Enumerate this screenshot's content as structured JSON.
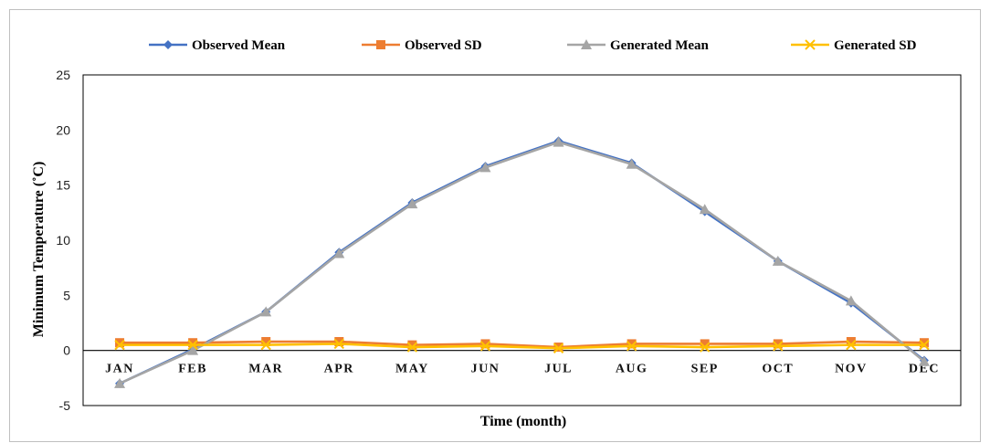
{
  "chart_data": {
    "type": "line",
    "title": "",
    "xlabel": "Time (month)",
    "ylabel": "Minimum Temperature (˚C)",
    "ylim": [
      -5,
      25
    ],
    "yticks": [
      -5,
      0,
      5,
      10,
      15,
      20,
      25
    ],
    "grid": false,
    "legend": "top",
    "categories": [
      "JAN",
      "FEB",
      "MAR",
      "APR",
      "MAY",
      "JUN",
      "JUL",
      "AUG",
      "SEP",
      "OCT",
      "NOV",
      "DEC"
    ],
    "series": [
      {
        "name": "Observed Mean",
        "color": "#4472c4",
        "marker": "diamond",
        "values": [
          -3.0,
          0.1,
          3.5,
          8.9,
          13.4,
          16.7,
          19.0,
          17.0,
          12.6,
          8.1,
          4.3,
          -0.9
        ]
      },
      {
        "name": "Observed SD",
        "color": "#ed7d31",
        "marker": "square",
        "values": [
          0.7,
          0.7,
          0.8,
          0.8,
          0.5,
          0.6,
          0.3,
          0.6,
          0.6,
          0.6,
          0.8,
          0.7
        ]
      },
      {
        "name": "Generated Mean",
        "color": "#a5a5a5",
        "marker": "triangle",
        "values": [
          -3.0,
          0.0,
          3.5,
          8.8,
          13.3,
          16.6,
          18.9,
          16.9,
          12.8,
          8.1,
          4.5,
          -1.0
        ]
      },
      {
        "name": "Generated SD",
        "color": "#ffc000",
        "marker": "x",
        "values": [
          0.5,
          0.5,
          0.5,
          0.6,
          0.3,
          0.4,
          0.2,
          0.4,
          0.3,
          0.4,
          0.5,
          0.5
        ]
      }
    ]
  }
}
